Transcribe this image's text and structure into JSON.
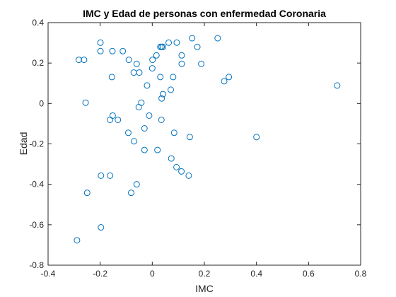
{
  "chart_data": {
    "type": "scatter",
    "title": "IMC y Edad de personas con enfermedad Coronaria",
    "xlabel": "IMC",
    "ylabel": "Edad",
    "xlim": [
      -0.4,
      0.8
    ],
    "ylim": [
      -0.8,
      0.4
    ],
    "xticks": [
      "-0.4",
      "-0.2",
      "0",
      "0.2",
      "0.4",
      "0.6",
      "0.8"
    ],
    "yticks": [
      "-0.8",
      "-0.6",
      "-0.4",
      "-0.2",
      "0",
      "0.2",
      "0.4"
    ],
    "grid": false,
    "marker_color": "#0072BD",
    "points": [
      [
        -0.282,
        0.216
      ],
      [
        -0.262,
        0.216
      ],
      [
        -0.199,
        0.301
      ],
      [
        -0.199,
        0.259
      ],
      [
        -0.153,
        0.259
      ],
      [
        -0.113,
        0.259
      ],
      [
        -0.09,
        0.216
      ],
      [
        -0.071,
        0.153
      ],
      [
        -0.06,
        0.196
      ],
      [
        -0.05,
        0.153
      ],
      [
        -0.155,
        0.131
      ],
      [
        -0.02,
        0.089
      ],
      [
        0.0,
        0.174
      ],
      [
        0.001,
        0.216
      ],
      [
        0.016,
        0.238
      ],
      [
        0.031,
        0.28
      ],
      [
        0.036,
        0.28
      ],
      [
        0.041,
        0.28
      ],
      [
        0.063,
        0.301
      ],
      [
        0.094,
        0.301
      ],
      [
        0.153,
        0.323
      ],
      [
        0.173,
        0.28
      ],
      [
        0.113,
        0.238
      ],
      [
        0.113,
        0.196
      ],
      [
        0.188,
        0.196
      ],
      [
        0.251,
        0.323
      ],
      [
        0.08,
        0.131
      ],
      [
        0.031,
        0.131
      ],
      [
        0.071,
        0.068
      ],
      [
        0.041,
        0.046
      ],
      [
        0.036,
        0.025
      ],
      [
        0.276,
        0.11
      ],
      [
        0.294,
        0.131
      ],
      [
        0.71,
        0.089
      ],
      [
        -0.256,
        0.004
      ],
      [
        -0.042,
        0.004
      ],
      [
        -0.052,
        -0.018
      ],
      [
        -0.152,
        -0.06
      ],
      [
        -0.132,
        -0.081
      ],
      [
        -0.162,
        -0.081
      ],
      [
        -0.012,
        -0.06
      ],
      [
        0.035,
        -0.081
      ],
      [
        -0.092,
        -0.145
      ],
      [
        -0.03,
        -0.123
      ],
      [
        0.084,
        -0.145
      ],
      [
        0.144,
        -0.166
      ],
      [
        0.4,
        -0.166
      ],
      [
        -0.07,
        -0.187
      ],
      [
        -0.03,
        -0.23
      ],
      [
        0.02,
        -0.23
      ],
      [
        0.073,
        -0.272
      ],
      [
        0.093,
        -0.315
      ],
      [
        0.112,
        -0.336
      ],
      [
        0.14,
        -0.357
      ],
      [
        -0.197,
        -0.357
      ],
      [
        -0.162,
        -0.357
      ],
      [
        -0.06,
        -0.4
      ],
      [
        -0.25,
        -0.442
      ],
      [
        -0.081,
        -0.442
      ],
      [
        -0.197,
        -0.613
      ],
      [
        -0.289,
        -0.677
      ]
    ]
  }
}
